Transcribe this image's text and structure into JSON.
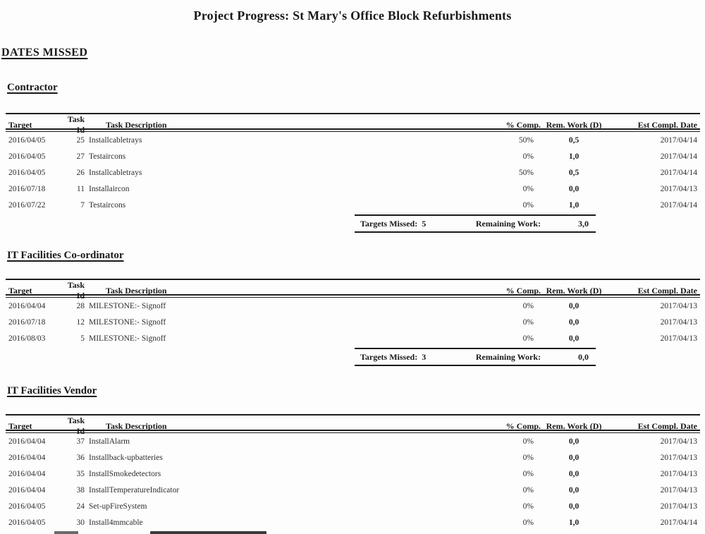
{
  "title": "Project Progress: St Mary's Office Block Refurbishments",
  "page_heading": "DATES MISSED",
  "ink_color": "#1a1a1a",
  "paper_color": "#fdfdfd",
  "columns": {
    "target": "Target",
    "task_id": "Task Id",
    "description": "Task Description",
    "pct_comp": "% Comp.",
    "rem_work": "Rem. Work (D)",
    "est_compl": "Est Compl. Date"
  },
  "summary_labels": {
    "targets_missed": "Targets Missed:",
    "remaining_work": "Remaining Work:"
  },
  "sections": [
    {
      "heading": "Contractor",
      "rows": [
        {
          "target": "2016/04/05",
          "task_id": "25",
          "description": "Installcabletrays",
          "pct": "50%",
          "rem": "0,5",
          "est": "2017/04/14"
        },
        {
          "target": "2016/04/05",
          "task_id": "27",
          "description": "Testaircons",
          "pct": "0%",
          "rem": "1,0",
          "est": "2017/04/14"
        },
        {
          "target": "2016/04/05",
          "task_id": "26",
          "description": "Installcabletrays",
          "pct": "50%",
          "rem": "0,5",
          "est": "2017/04/14"
        },
        {
          "target": "2016/07/18",
          "task_id": "11",
          "description": "Installaircon",
          "pct": "0%",
          "rem": "0,0",
          "est": "2017/04/13"
        },
        {
          "target": "2016/07/22",
          "task_id": "7",
          "description": "Testaircons",
          "pct": "0%",
          "rem": "1,0",
          "est": "2017/04/14"
        }
      ],
      "targets_missed": "5",
      "remaining_work_total": "3,0"
    },
    {
      "heading": "IT Facilities Co-ordinator",
      "rows": [
        {
          "target": "2016/04/04",
          "task_id": "28",
          "description": "MILESTONE:- Signoff",
          "pct": "0%",
          "rem": "0,0",
          "est": "2017/04/13"
        },
        {
          "target": "2016/07/18",
          "task_id": "12",
          "description": "MILESTONE:- Signoff",
          "pct": "0%",
          "rem": "0,0",
          "est": "2017/04/13"
        },
        {
          "target": "2016/08/03",
          "task_id": "5",
          "description": "MILESTONE:- Signoff",
          "pct": "0%",
          "rem": "0,0",
          "est": "2017/04/13"
        }
      ],
      "targets_missed": "3",
      "remaining_work_total": "0,0"
    },
    {
      "heading": "IT Facilities Vendor",
      "rows": [
        {
          "target": "2016/04/04",
          "task_id": "37",
          "description": "InstallAlarm",
          "pct": "0%",
          "rem": "0,0",
          "est": "2017/04/13"
        },
        {
          "target": "2016/04/04",
          "task_id": "36",
          "description": "Installback-upbatteries",
          "pct": "0%",
          "rem": "0,0",
          "est": "2017/04/13"
        },
        {
          "target": "2016/04/04",
          "task_id": "35",
          "description": "InstallSmokedetectors",
          "pct": "0%",
          "rem": "0,0",
          "est": "2017/04/13"
        },
        {
          "target": "2016/04/04",
          "task_id": "38",
          "description": "InstallTemperatureIndicator",
          "pct": "0%",
          "rem": "0,0",
          "est": "2017/04/13"
        },
        {
          "target": "2016/04/05",
          "task_id": "24",
          "description": "Set-upFireSystem",
          "pct": "0%",
          "rem": "0,0",
          "est": "2017/04/13"
        },
        {
          "target": "2016/04/05",
          "task_id": "30",
          "description": "Install4mmcable",
          "pct": "0%",
          "rem": "1,0",
          "est": "2017/04/14"
        }
      ],
      "next_row_partially_visible": true
    }
  ]
}
